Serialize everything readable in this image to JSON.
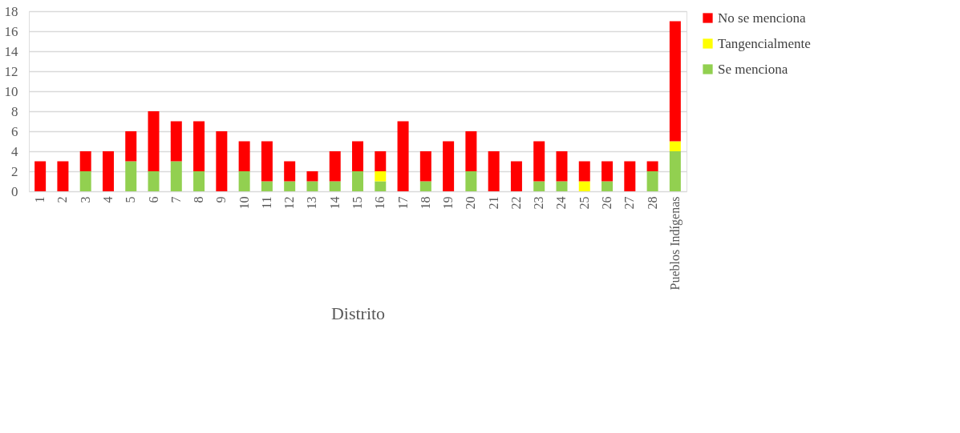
{
  "chart_data": {
    "type": "bar",
    "stacked": true,
    "xlabel": "Distrito",
    "categories": [
      "1",
      "2",
      "3",
      "4",
      "5",
      "6",
      "7",
      "8",
      "9",
      "10",
      "11",
      "12",
      "13",
      "14",
      "15",
      "16",
      "17",
      "18",
      "19",
      "20",
      "21",
      "22",
      "23",
      "24",
      "25",
      "26",
      "27",
      "28",
      "Pueblos Indígenas"
    ],
    "series": [
      {
        "name": "Se menciona",
        "color": "#92d050",
        "values": [
          0,
          0,
          2,
          0,
          3,
          2,
          3,
          2,
          0,
          2,
          1,
          1,
          1,
          1,
          2,
          1,
          0,
          1,
          0,
          2,
          0,
          0,
          1,
          1,
          0,
          1,
          0,
          2,
          4
        ]
      },
      {
        "name": "Tangencialmente",
        "color": "#ffff00",
        "values": [
          0,
          0,
          0,
          0,
          0,
          0,
          0,
          0,
          0,
          0,
          0,
          0,
          0,
          0,
          0,
          1,
          0,
          0,
          0,
          0,
          0,
          0,
          0,
          0,
          1,
          0,
          0,
          0,
          1
        ]
      },
      {
        "name": "No se menciona",
        "color": "#ff0000",
        "values": [
          3,
          3,
          2,
          4,
          3,
          6,
          4,
          5,
          6,
          3,
          4,
          2,
          1,
          3,
          3,
          2,
          7,
          3,
          5,
          4,
          4,
          3,
          4,
          3,
          2,
          2,
          3,
          1,
          12
        ]
      }
    ],
    "ylim": [
      0,
      18
    ],
    "yticks": [
      0,
      2,
      4,
      6,
      8,
      10,
      12,
      14,
      16,
      18
    ],
    "grid": "y",
    "legend": "right"
  }
}
